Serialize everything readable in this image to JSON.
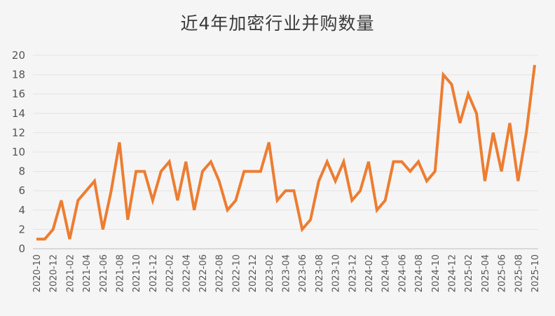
{
  "chart_data": {
    "type": "line",
    "title": "近4年加密行业并购数量",
    "xlabel": "",
    "ylabel": "",
    "ylim": [
      0,
      20
    ],
    "yticks": [
      0,
      2,
      4,
      6,
      8,
      10,
      12,
      14,
      16,
      18,
      20
    ],
    "grid": true,
    "legend": "none",
    "x_tick_labels": [
      "2020-10",
      "2020-12",
      "2021-02",
      "2021-04",
      "2021-06",
      "2021-08",
      "2021-10",
      "2021-12",
      "2022-02",
      "2022-04",
      "2022-06",
      "2022-08",
      "2022-10",
      "2022-12",
      "2023-02",
      "2023-04",
      "2023-06",
      "2023-08",
      "2023-10",
      "2023-12",
      "2024-02",
      "2024-04",
      "2024-06",
      "2024-08",
      "2024-10",
      "2024-12",
      "2025-02",
      "2025-04",
      "2025-06",
      "2025-08",
      "2025-10"
    ],
    "x": [
      "2020-10",
      "2020-11",
      "2020-12",
      "2021-01",
      "2021-02",
      "2021-03",
      "2021-04",
      "2021-05",
      "2021-06",
      "2021-07",
      "2021-08",
      "2021-09",
      "2021-10",
      "2021-11",
      "2021-12",
      "2022-01",
      "2022-02",
      "2022-03",
      "2022-04",
      "2022-05",
      "2022-06",
      "2022-07",
      "2022-08",
      "2022-09",
      "2022-10",
      "2022-11",
      "2022-12",
      "2023-01",
      "2023-02",
      "2023-03",
      "2023-04",
      "2023-05",
      "2023-06",
      "2023-07",
      "2023-08",
      "2023-09",
      "2023-10",
      "2023-11",
      "2023-12",
      "2024-01",
      "2024-02",
      "2024-03",
      "2024-04",
      "2024-05",
      "2024-06",
      "2024-07",
      "2024-08",
      "2024-09",
      "2024-10",
      "2024-11",
      "2024-12",
      "2025-01",
      "2025-02",
      "2025-03",
      "2025-04",
      "2025-05",
      "2025-06",
      "2025-07",
      "2025-08",
      "2025-09",
      "2025-10"
    ],
    "series": [
      {
        "name": "并购数量",
        "color": "#ed7d31",
        "values": [
          1,
          1,
          2,
          5,
          1,
          5,
          6,
          7,
          2,
          6,
          11,
          3,
          8,
          8,
          5,
          8,
          9,
          5,
          9,
          4,
          8,
          9,
          7,
          4,
          5,
          8,
          8,
          8,
          11,
          5,
          6,
          6,
          2,
          3,
          7,
          9,
          7,
          9,
          5,
          6,
          9,
          4,
          5,
          9,
          9,
          8,
          9,
          7,
          8,
          18,
          17,
          13,
          16,
          14,
          7,
          12,
          8,
          13,
          7,
          12,
          19
        ]
      }
    ]
  }
}
